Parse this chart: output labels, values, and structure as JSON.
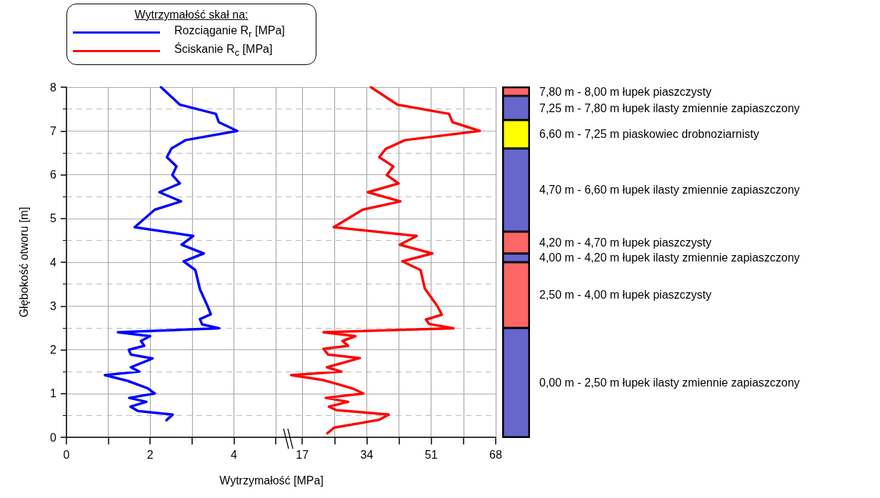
{
  "chart_data": [
    {
      "type": "line",
      "xlabel": "Wytrzymałość [MPa]",
      "ylabel": "Głębokość otworu [m]",
      "legend_title": "Wytrzymałość skał na:",
      "legend": "top",
      "grid": true,
      "line_style": "solid",
      "xlim": [
        0,
        5
      ],
      "xticks": [
        0,
        {
          "value": 1,
          "label": null
        },
        2,
        {
          "value": 3,
          "label": null
        },
        4,
        {
          "value": 5,
          "label": null
        }
      ],
      "ylim": [
        0,
        8
      ],
      "yticks": [
        0,
        1,
        2,
        3,
        4,
        5,
        6,
        7,
        8
      ],
      "series": [
        {
          "name": "Rozciąganie R$_{r}$ [MPa]",
          "color": "#0000ff",
          "x": [
            2.26,
            2.71,
            3.57,
            3.64,
            4.08,
            2.85,
            2.51,
            2.4,
            2.63,
            2.53,
            2.71,
            2.22,
            2.74,
            2.11,
            1.63,
            3.03,
            2.75,
            3.28,
            2.8,
            3.08,
            3.19,
            3.37,
            3.45,
            3.19,
            3.24,
            3.65,
            1.23,
            2.0,
            1.78,
            1.86,
            1.49,
            1.54,
            2.06,
            1.54,
            1.74,
            0.92,
            1.46,
            1.94,
            2.11,
            1.5,
            1.91,
            1.53,
            1.71,
            2.54,
            2.39
          ],
          "values": [
            8.0,
            7.6,
            7.39,
            7.2,
            7.0,
            6.79,
            6.6,
            6.4,
            6.19,
            5.99,
            5.8,
            5.6,
            5.39,
            5.2,
            4.8,
            4.6,
            4.4,
            4.2,
            4.02,
            3.82,
            3.38,
            3.0,
            2.81,
            2.7,
            2.58,
            2.49,
            2.4,
            2.31,
            2.2,
            2.09,
            2.0,
            1.89,
            1.8,
            1.6,
            1.5,
            1.42,
            1.29,
            1.12,
            1.0,
            0.9,
            0.81,
            0.7,
            0.6,
            0.52,
            0.39
          ]
        }
      ]
    },
    {
      "type": "line",
      "grid": true,
      "line_style": "solid",
      "tick_labels": "x",
      "xlim": [
        10,
        68
      ],
      "xticks": [
        17,
        {
          "value": 25.5,
          "label": null
        },
        34,
        {
          "value": 42.5,
          "label": null
        },
        51,
        {
          "value": 59.5,
          "label": null
        },
        68
      ],
      "ylim": [
        0,
        8
      ],
      "yticks": [
        0,
        1,
        2,
        3,
        4,
        5,
        6,
        7,
        8
      ],
      "series": [
        {
          "name": "Ściskanie R$_{c}$ [MPa]",
          "color": "#ff0000",
          "x": [
            35.1,
            42.1,
            55.7,
            56.6,
            63.8,
            44.1,
            39.0,
            37.3,
            41.0,
            39.3,
            42.4,
            34.3,
            42.9,
            32.9,
            25.3,
            47.2,
            42.7,
            51.3,
            43.4,
            48.2,
            49.3,
            52.6,
            53.8,
            49.6,
            50.4,
            56.9,
            22.6,
            31.0,
            27.6,
            29.1,
            22.6,
            23.8,
            32.2,
            23.5,
            27.3,
            14.1,
            22.3,
            25.7,
            30.4,
            33.1,
            23.2,
            29.1,
            24.0,
            26.0,
            39.8,
            37.3,
            25.4,
            23.6
          ],
          "values": [
            8.0,
            7.6,
            7.39,
            7.2,
            7.0,
            6.79,
            6.59,
            6.4,
            6.19,
            5.99,
            5.8,
            5.6,
            5.39,
            5.2,
            4.8,
            4.6,
            4.4,
            4.2,
            4.02,
            3.82,
            3.4,
            3.0,
            2.8,
            2.69,
            2.59,
            2.49,
            2.4,
            2.31,
            2.2,
            2.09,
            2.02,
            1.89,
            1.81,
            1.6,
            1.5,
            1.42,
            1.31,
            1.23,
            1.11,
            1.0,
            0.9,
            0.81,
            0.7,
            0.62,
            0.52,
            0.4,
            0.22,
            0.09
          ]
        }
      ]
    },
    {
      "type": "bar",
      "stacked": true,
      "tick_labels": false,
      "categories": [
        null
      ],
      "ylim": [
        0,
        8
      ],
      "series": [
        {
          "name": "0,00 m - 2,50 m łupek ilasty zmiennie zapiaszczony",
          "color": "#6666cc",
          "values": [
            2.5
          ]
        },
        {
          "name": "2,50 m - 4,00 m łupek piaszczysty",
          "color": "#ff6666",
          "values": [
            1.5
          ]
        },
        {
          "name": "4,00 m - 4,20 m łupek ilasty zmiennie zapiaszczony",
          "color": "#6666cc",
          "values": [
            0.2
          ]
        },
        {
          "name": "4,20 m - 4,70 m łupek piaszczysty",
          "color": "#ff6666",
          "values": [
            0.5
          ]
        },
        {
          "name": "4,70 m - 6,60 m łupek ilasty zmiennie zapiaszczony",
          "color": "#6666cc",
          "values": [
            1.9
          ]
        },
        {
          "name": "6,60 m - 7,25 m piaskowiec drobnoziarnisty",
          "color": "#ffff00",
          "values": [
            0.65
          ]
        },
        {
          "name": "7,25 m - 7,80 m łupek ilasty zmiennie zapiaszczony",
          "color": "#6666cc",
          "values": [
            0.55
          ]
        },
        {
          "name": "7,80 m - 8,00 m łupek piaszczysty",
          "color": "#ff6666",
          "values": [
            0.2
          ]
        }
      ]
    }
  ]
}
